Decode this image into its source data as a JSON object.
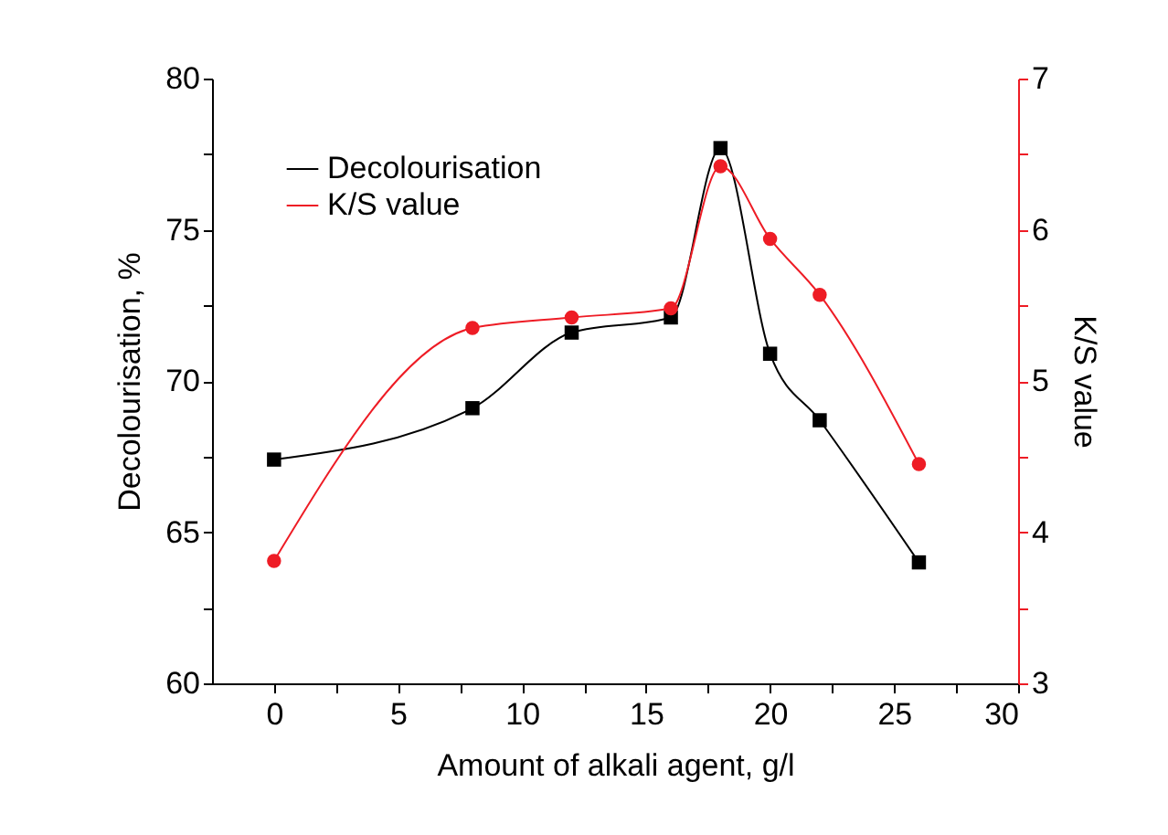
{
  "chart_data": {
    "type": "line",
    "xlabel": "Amount of alkali agent, g/l",
    "ylabel": "Decolourisation, %",
    "y2label": "K/S value",
    "x": [
      0,
      8,
      12,
      16,
      18,
      20,
      22,
      26
    ],
    "series": [
      {
        "name": "Decolourisation",
        "color": "#000000",
        "marker": "square",
        "values": [
          67.4,
          69.1,
          71.6,
          72.1,
          77.7,
          70.9,
          68.7,
          64.0
        ]
      },
      {
        "name": "K/S value",
        "color": "#ee1c25",
        "marker": "circle",
        "axis": "y2",
        "values": [
          3.81,
          5.35,
          5.42,
          5.48,
          6.42,
          5.94,
          5.57,
          4.45
        ]
      }
    ],
    "xlim": [
      -2.5,
      30
    ],
    "xticks": [
      0,
      {
        "value": 2.5,
        "label": null
      },
      5,
      {
        "value": 7.5,
        "label": null
      },
      10,
      {
        "value": 12.5,
        "label": null
      },
      15,
      {
        "value": 17.5,
        "label": null
      },
      20,
      {
        "value": 22.5,
        "label": null
      },
      25,
      {
        "value": 27.5,
        "label": null
      },
      30
    ],
    "ylim": [
      60,
      80
    ],
    "yticks": [
      60,
      {
        "value": 62.5,
        "label": null
      },
      65,
      {
        "value": 67.5,
        "label": null
      },
      70,
      {
        "value": 72.5,
        "label": null
      },
      75,
      {
        "value": 77.5,
        "label": null
      },
      80
    ],
    "y2lim": [
      3,
      7
    ],
    "y2ticks": [
      3,
      {
        "value": 3.5,
        "label": null
      },
      4,
      {
        "value": 4.5,
        "label": null
      },
      5,
      {
        "value": 5.5,
        "label": null
      },
      6,
      {
        "value": 6.5,
        "label": null
      },
      7
    ],
    "grid": false,
    "legend": "top left",
    "line_style": "solid"
  }
}
